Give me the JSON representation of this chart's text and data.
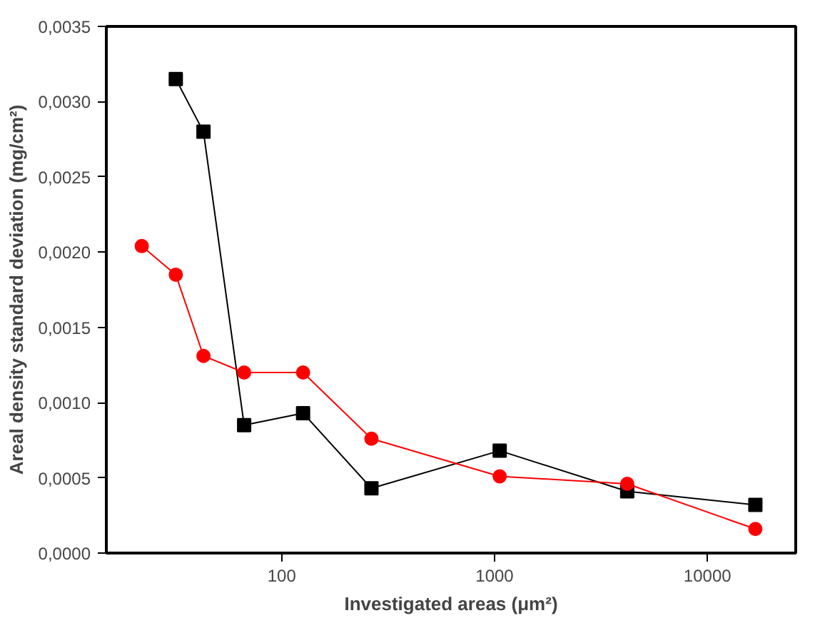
{
  "chart_data": {
    "type": "line",
    "xlabel": "Investigated areas (μm²)",
    "ylabel": "Areal density standard deviation (mg/cm²)",
    "log": "x",
    "grid": false,
    "xlim": [
      15,
      26000
    ],
    "xticks": [
      100,
      1000,
      10000
    ],
    "ylim": [
      0,
      0.0035
    ],
    "yticks": [
      {
        "value": 0,
        "label": "0,0000"
      },
      {
        "value": 0.0005,
        "label": "0,0005"
      },
      {
        "value": 0.001,
        "label": "0,0010"
      },
      {
        "value": 0.0015,
        "label": "0,0015"
      },
      {
        "value": 0.002,
        "label": "0,0020"
      },
      {
        "value": 0.0025,
        "label": "0,0025"
      },
      {
        "value": 0.003,
        "label": "0,0030"
      },
      {
        "value": 0.0035,
        "label": "0,0035"
      }
    ],
    "series": [
      {
        "color": "#000000",
        "marker": "square",
        "x": [
          31.8,
          42.9,
          66.6,
          126,
          264,
          1057,
          4200,
          16800
        ],
        "values": [
          0.00315,
          0.0028,
          0.00085,
          0.00093,
          0.00043,
          0.00068,
          0.00041,
          0.00032
        ]
      },
      {
        "color": "#ff0000",
        "marker": "circle",
        "x": [
          22,
          31.8,
          42.9,
          66.6,
          126,
          264,
          1057,
          4200,
          16800
        ],
        "values": [
          0.00204,
          0.00185,
          0.00131,
          0.0012,
          0.0012,
          0.00076,
          0.00051,
          0.00046,
          0.00016
        ]
      }
    ]
  }
}
